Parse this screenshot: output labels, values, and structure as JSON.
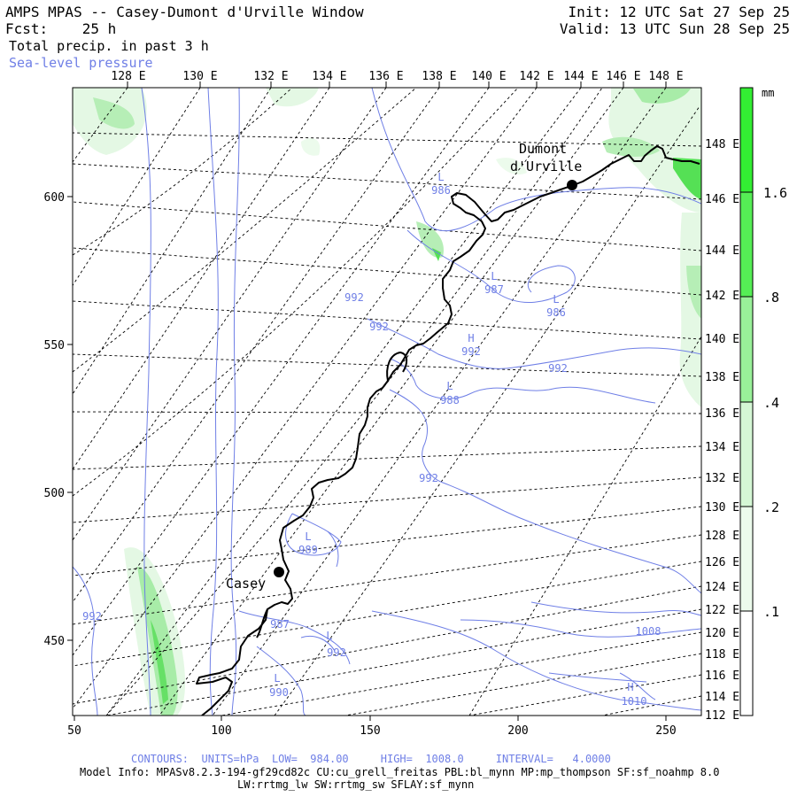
{
  "header": {
    "title": "AMPS MPAS -- Casey-Dumont d'Urville Window",
    "forecast": "Fcst:    25 h",
    "field": "Total precip. in past 3 h",
    "contour_field": "Sea-level pressure",
    "init": "Init: 12 UTC Sat 27 Sep 25",
    "valid": "Valid: 13 UTC Sun 28 Sep 25"
  },
  "map": {
    "top_lon_labels": [
      "128 E",
      "130 E",
      "132 E",
      "134 E",
      "136 E",
      "138 E",
      "140 E",
      "142 E",
      "144 E",
      "146 E",
      "148 E"
    ],
    "right_lon_labels": [
      "148 E",
      "146 E",
      "144 E",
      "142 E",
      "140 E",
      "138 E",
      "136 E",
      "134 E",
      "132 E",
      "130 E",
      "128 E",
      "126 E",
      "124 E",
      "122 E",
      "120 E",
      "118 E",
      "116 E",
      "114 E",
      "112 E"
    ],
    "x_ticks": [
      "50",
      "100",
      "150",
      "200",
      "250"
    ],
    "y_ticks": [
      "600",
      "550",
      "500",
      "450"
    ],
    "stations": [
      {
        "name": "Casey",
        "lines": [
          "Casey"
        ]
      },
      {
        "name": "Dumont d'Urville",
        "lines": [
          "Dumont",
          "d'Urville"
        ]
      }
    ],
    "pressure_labels": [
      {
        "kind": "L",
        "value": "986"
      },
      {
        "kind": "L",
        "value": "987"
      },
      {
        "kind": "L",
        "value": "986"
      },
      {
        "kind": "",
        "value": "992"
      },
      {
        "kind": "",
        "value": "992"
      },
      {
        "kind": "H",
        "value": "992"
      },
      {
        "kind": "",
        "value": "992"
      },
      {
        "kind": "L",
        "value": "988"
      },
      {
        "kind": "",
        "value": "992"
      },
      {
        "kind": "L",
        "value": "989"
      },
      {
        "kind": "",
        "value": "992"
      },
      {
        "kind": "",
        "value": "987"
      },
      {
        "kind": "L",
        "value": "992"
      },
      {
        "kind": "L",
        "value": "990"
      },
      {
        "kind": "",
        "value": "1008"
      },
      {
        "kind": "H",
        "value": "1010"
      }
    ]
  },
  "colorbar": {
    "unit": "mm",
    "labels": [
      "1.6",
      ".8",
      ".4",
      ".2",
      ".1"
    ],
    "colors": [
      "#33ee33",
      "#55ee55",
      "#99f099",
      "#d5f7d5",
      "#ecfbec",
      "#ffffff"
    ]
  },
  "footer": {
    "contours": "CONTOURS:  UNITS=hPa  LOW=  984.00     HIGH=  1008.0     INTERVAL=   4.0000",
    "model_info": "Model Info: MPASv8.2.3-194-gf29cd82c CU:cu_grell_freitas PBL:bl_mynn MP:mp_thompson SF:sf_noahmp 8.0",
    "physics": "LW:rrtmg_lw SW:rrtmg_sw SFLAY:sf_mynn"
  },
  "colors": {
    "contour": "#6f7fe6",
    "coast": "#000000",
    "precip_light": "#d8f5d8",
    "precip_mid": "#a8eca8",
    "precip_heavy": "#44dd44"
  }
}
